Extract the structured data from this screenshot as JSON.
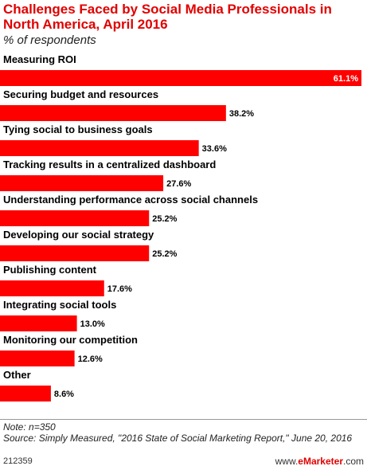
{
  "header": {
    "title": "Challenges Faced by Social Media Professionals in North America, April 2016",
    "subtitle": "% of respondents"
  },
  "chart_data": {
    "type": "bar",
    "orientation": "horizontal",
    "categories": [
      "Measuring ROI",
      "Securing budget and resources",
      "Tying social to business goals",
      "Tracking results in a centralized dashboard",
      "Understanding performance across social channels",
      "Developing our social strategy",
      "Publishing content",
      "Integrating social tools",
      "Monitoring our competition",
      "Other"
    ],
    "values": [
      61.1,
      38.2,
      33.6,
      27.6,
      25.2,
      25.2,
      17.6,
      13.0,
      12.6,
      8.6
    ],
    "value_labels": [
      "61.1%",
      "38.2%",
      "33.6%",
      "27.6%",
      "25.2%",
      "25.2%",
      "17.6%",
      "13.0%",
      "12.6%",
      "8.6%"
    ],
    "bar_color": "#ff0000",
    "xlim": [
      0,
      61.1
    ],
    "grid": false
  },
  "footer": {
    "note": "Note: n=350",
    "source": "Source: Simply Measured, \"2016 State of Social Marketing Report,\" June 20, 2016",
    "chart_id": "212359",
    "brand_prefix": "www.",
    "brand_name": "eMarketer",
    "brand_suffix": ".com"
  }
}
